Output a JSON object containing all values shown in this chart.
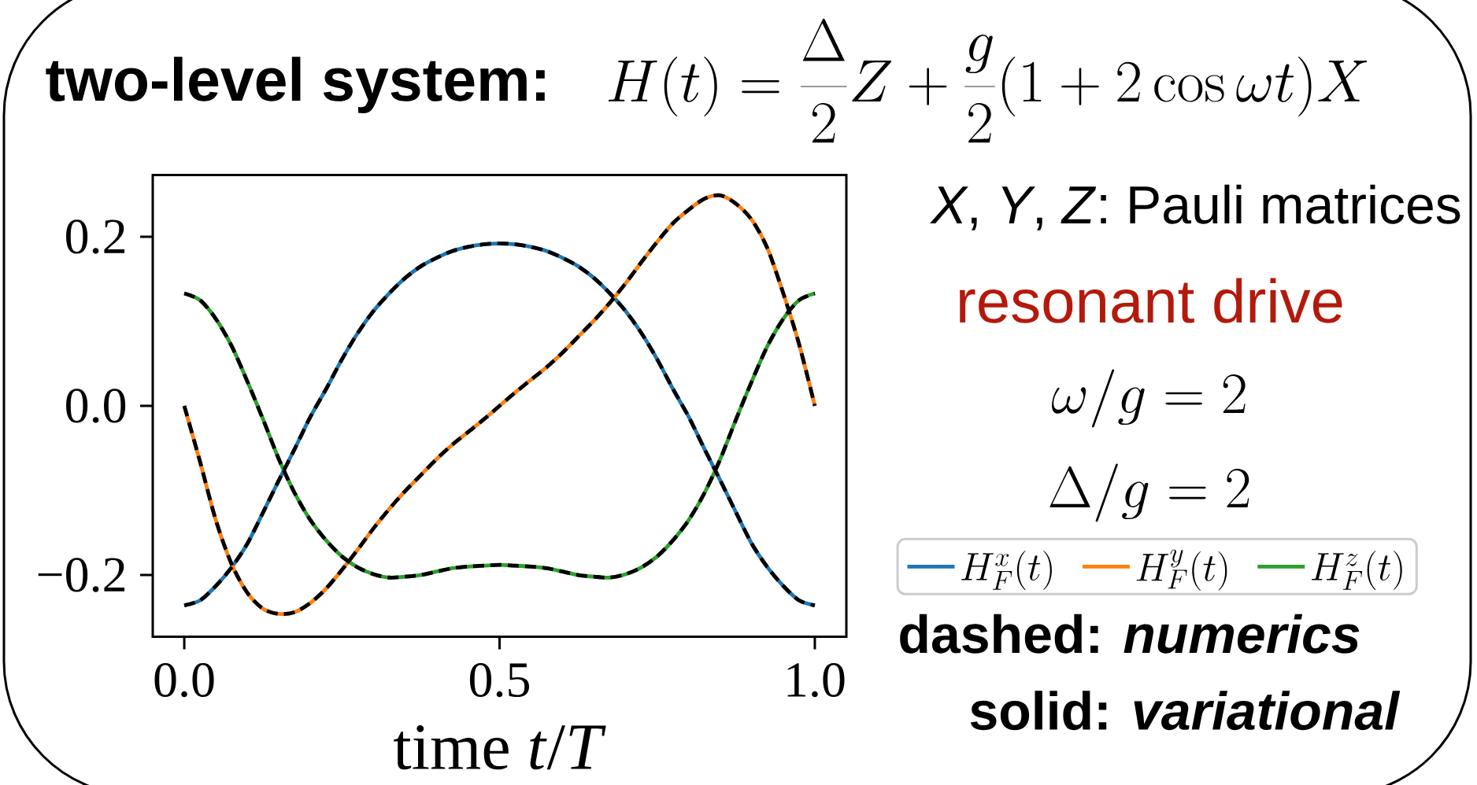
{
  "chart_data": {
    "type": "line",
    "title": "two-level system:",
    "subtitle": "H(t) = \\frac{\\Delta}{2}Z + \\frac{g}{2}(1 + 2\\cos\\omega t)X",
    "xlabel": "time *t*/*T*",
    "x": [
      0,
      0.025,
      0.05,
      0.075,
      0.1,
      0.125,
      0.15,
      0.175,
      0.2,
      0.225,
      0.25,
      0.275,
      0.3,
      0.325,
      0.35,
      0.375,
      0.4,
      0.425,
      0.45,
      0.475,
      0.5,
      0.525,
      0.55,
      0.575,
      0.6,
      0.625,
      0.65,
      0.675,
      0.7,
      0.725,
      0.75,
      0.775,
      0.8,
      0.825,
      0.85,
      0.875,
      0.9,
      0.925,
      0.95,
      0.975,
      1
    ],
    "series": [
      {
        "name": "H_F^x(t)",
        "color": "#1f77b4",
        "line_style": "solid",
        "values": [
          -0.236,
          -0.23,
          -0.213,
          -0.191,
          -0.163,
          -0.126,
          -0.088,
          -0.051,
          -0.013,
          0.02,
          0.055,
          0.086,
          0.112,
          0.133,
          0.151,
          0.165,
          0.175,
          0.183,
          0.188,
          0.191,
          0.192,
          0.191,
          0.188,
          0.183,
          0.175,
          0.165,
          0.151,
          0.133,
          0.112,
          0.086,
          0.055,
          0.02,
          -0.013,
          -0.051,
          -0.088,
          -0.126,
          -0.163,
          -0.191,
          -0.213,
          -0.23,
          -0.236
        ]
      },
      {
        "name": "H_F^y(t)",
        "color": "#ff7f0e",
        "line_style": "solid",
        "values": [
          0,
          -0.066,
          -0.135,
          -0.187,
          -0.221,
          -0.24,
          -0.246,
          -0.244,
          -0.233,
          -0.216,
          -0.194,
          -0.17,
          -0.145,
          -0.122,
          -0.101,
          -0.082,
          -0.063,
          -0.046,
          -0.031,
          -0.016,
          0,
          0.016,
          0.031,
          0.046,
          0.063,
          0.082,
          0.101,
          0.122,
          0.145,
          0.17,
          0.194,
          0.216,
          0.232,
          0.245,
          0.249,
          0.239,
          0.22,
          0.186,
          0.133,
          0.073,
          0
        ]
      },
      {
        "name": "H_F^z(t)",
        "color": "#2ca02c",
        "line_style": "solid",
        "values": [
          0.133,
          0.125,
          0.103,
          0.071,
          0.029,
          -0.016,
          -0.063,
          -0.103,
          -0.135,
          -0.159,
          -0.178,
          -0.191,
          -0.199,
          -0.203,
          -0.202,
          -0.2,
          -0.196,
          -0.192,
          -0.19,
          -0.189,
          -0.188,
          -0.189,
          -0.19,
          -0.192,
          -0.196,
          -0.2,
          -0.202,
          -0.203,
          -0.199,
          -0.191,
          -0.178,
          -0.159,
          -0.135,
          -0.103,
          -0.063,
          -0.016,
          0.029,
          0.071,
          0.103,
          0.125,
          0.133
        ]
      },
      {
        "color": "#000000",
        "line_style": "dashed",
        "values": [
          -0.236,
          -0.23,
          -0.213,
          -0.191,
          -0.163,
          -0.126,
          -0.088,
          -0.051,
          -0.013,
          0.02,
          0.055,
          0.086,
          0.112,
          0.133,
          0.151,
          0.165,
          0.175,
          0.183,
          0.188,
          0.191,
          0.192,
          0.191,
          0.188,
          0.183,
          0.175,
          0.165,
          0.151,
          0.133,
          0.112,
          0.086,
          0.055,
          0.02,
          -0.013,
          -0.051,
          -0.088,
          -0.126,
          -0.163,
          -0.191,
          -0.213,
          -0.23,
          -0.236
        ]
      },
      {
        "color": "#000000",
        "line_style": "dashed",
        "values": [
          0,
          -0.066,
          -0.135,
          -0.187,
          -0.221,
          -0.24,
          -0.246,
          -0.244,
          -0.233,
          -0.216,
          -0.194,
          -0.17,
          -0.145,
          -0.122,
          -0.101,
          -0.082,
          -0.063,
          -0.046,
          -0.031,
          -0.016,
          0,
          0.016,
          0.031,
          0.046,
          0.063,
          0.082,
          0.101,
          0.122,
          0.145,
          0.17,
          0.194,
          0.216,
          0.232,
          0.245,
          0.249,
          0.239,
          0.22,
          0.186,
          0.133,
          0.073,
          0
        ]
      },
      {
        "color": "#000000",
        "line_style": "dashed",
        "values": [
          0.133,
          0.125,
          0.103,
          0.071,
          0.029,
          -0.016,
          -0.063,
          -0.103,
          -0.135,
          -0.159,
          -0.178,
          -0.191,
          -0.199,
          -0.203,
          -0.202,
          -0.2,
          -0.196,
          -0.192,
          -0.19,
          -0.189,
          -0.188,
          -0.189,
          -0.19,
          -0.192,
          -0.196,
          -0.2,
          -0.202,
          -0.203,
          -0.199,
          -0.191,
          -0.178,
          -0.159,
          -0.135,
          -0.103,
          -0.063,
          -0.016,
          0.029,
          0.071,
          0.103,
          0.125,
          0.133
        ]
      }
    ],
    "xlim": [
      -0.05,
      1.05
    ],
    "ylim": [
      -0.273,
      0.273
    ],
    "xticks": [
      {
        "value": 0,
        "label": "0.0"
      },
      0.5,
      {
        "value": 1,
        "label": "1.0"
      }
    ],
    "yticks": [
      {
        "value": -0.2,
        "label": "−0.2"
      },
      {
        "value": 0,
        "label": "0.0"
      },
      0.2
    ],
    "legend": "right",
    "annotations": [
      "*X*, *Y*, *Z*: Pauli matrices",
      "resonant drive",
      "\\omega/g = 2",
      "\\Delta/g = 2",
      "dashed: *numerics*",
      "solid: *variational*"
    ]
  }
}
